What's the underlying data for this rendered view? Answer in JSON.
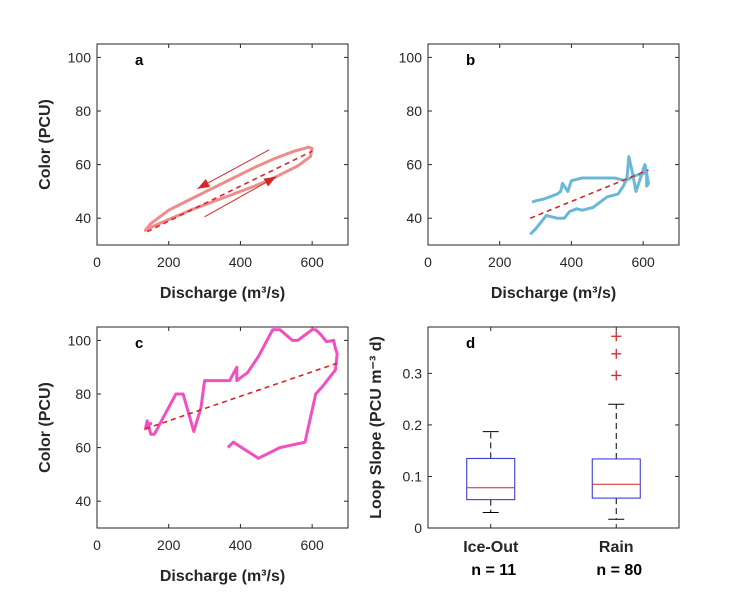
{
  "chart_data": [
    {
      "panel": "a",
      "type": "line",
      "xlabel": "Discharge (m³/s)",
      "ylabel": "Color (PCU)",
      "xlim": [
        0,
        700
      ],
      "ylim": [
        30,
        105
      ],
      "xticks": [
        0,
        200,
        400,
        600
      ],
      "yticks": [
        40,
        60,
        80,
        100
      ],
      "colors": {
        "loop": "#f08b8b",
        "fit": "#d62728",
        "arrow": "#d62728"
      },
      "series": [
        {
          "style": "loop",
          "x": [
            140,
            200,
            260,
            320,
            380,
            440,
            500,
            560,
            595,
            600,
            590,
            550,
            500,
            440,
            380,
            320,
            260,
            200,
            150,
            135,
            140
          ],
          "y": [
            36,
            39.5,
            43,
            46,
            49,
            52,
            55.5,
            59.5,
            63,
            66,
            66.5,
            65,
            62.5,
            59,
            55,
            51,
            47,
            43,
            38,
            35.5,
            36
          ]
        },
        {
          "style": "fit-dashed",
          "x": [
            140,
            600
          ],
          "y": [
            35,
            65
          ]
        },
        {
          "style": "arrow",
          "x": [
            480,
            280
          ],
          "y": [
            65.5,
            51
          ]
        },
        {
          "style": "arrow",
          "x": [
            300,
            500
          ],
          "y": [
            40.5,
            55.5
          ]
        }
      ]
    },
    {
      "panel": "b",
      "type": "line",
      "xlabel": "Discharge (m³/s)",
      "ylabel": "",
      "xlim": [
        0,
        700
      ],
      "ylim": [
        30,
        105
      ],
      "xticks": [
        0,
        200,
        400,
        600
      ],
      "yticks": [
        40,
        60,
        80,
        100
      ],
      "colors": {
        "loop": "#6ab8d9",
        "fit": "#d62728"
      },
      "series": [
        {
          "style": "loop",
          "x": [
            290,
            300,
            320,
            330,
            360,
            370,
            375,
            390,
            400,
            430,
            480,
            520,
            550,
            580,
            610,
            610,
            615,
            605,
            580,
            570,
            560,
            555,
            545,
            530,
            500,
            460,
            430,
            415,
            405,
            395,
            380,
            360,
            330,
            300,
            285
          ],
          "y": [
            46,
            46.5,
            47,
            47.5,
            49,
            50,
            53,
            50,
            54,
            55,
            55,
            55,
            54,
            56,
            57,
            52,
            53,
            60,
            50,
            57,
            63,
            55,
            52,
            49,
            48,
            44,
            43,
            43.5,
            43,
            42.5,
            40,
            40,
            41,
            36,
            34
          ]
        },
        {
          "style": "fit-dashed",
          "x": [
            285,
            615
          ],
          "y": [
            40,
            58
          ]
        }
      ]
    },
    {
      "panel": "c",
      "type": "line",
      "xlabel": "Discharge (m³/s)",
      "ylabel": "Color (PCU)",
      "xlim": [
        0,
        700
      ],
      "ylim": [
        30,
        105
      ],
      "xticks": [
        0,
        200,
        400,
        600
      ],
      "yticks": [
        40,
        60,
        80,
        100
      ],
      "colors": {
        "loop": "#f050c0",
        "fit": "#d62728"
      },
      "series": [
        {
          "style": "loop",
          "x": [
            365,
            380,
            450,
            510,
            580,
            610,
            630,
            665,
            670,
            665,
            660,
            640,
            625,
            610,
            600,
            560,
            545,
            510,
            490,
            450,
            420,
            390,
            390,
            370,
            360,
            350,
            300,
            290,
            270,
            240,
            220,
            200,
            180,
            160,
            150,
            140,
            135,
            150,
            140
          ],
          "y": [
            60,
            62,
            56,
            60,
            62,
            80,
            83,
            89,
            95,
            97,
            100,
            99.5,
            102,
            104,
            104,
            100,
            100,
            104,
            104,
            94,
            88,
            85,
            90,
            85,
            85,
            85,
            85,
            75,
            66,
            80,
            80,
            75,
            70,
            65,
            65,
            70,
            67,
            69,
            68
          ]
        },
        {
          "style": "fit-dashed",
          "x": [
            135,
            670
          ],
          "y": [
            67,
            91.5
          ]
        }
      ]
    },
    {
      "panel": "d",
      "type": "box",
      "ylabel": "Loop Slope (PCU m⁻³ d)",
      "categories": [
        "Ice-Out",
        "Rain"
      ],
      "counts": [
        "n = 11",
        "n = 80"
      ],
      "ylim": [
        0,
        0.39
      ],
      "yticks": [
        0,
        0.1,
        0.2,
        0.3
      ],
      "ytick_labels": [
        "0",
        "0.1",
        "0.2",
        "0.3"
      ],
      "colors": {
        "box": "#2b2bd6",
        "median": "#d62728",
        "outlier": "#d62728",
        "whisker": "#000000"
      },
      "boxes": [
        {
          "category": "Ice-Out",
          "whislo": 0.03,
          "q1": 0.055,
          "median": 0.078,
          "q3": 0.135,
          "whishi": 0.187,
          "outliers": []
        },
        {
          "category": "Rain",
          "whislo": 0.017,
          "q1": 0.058,
          "median": 0.085,
          "q3": 0.134,
          "whishi": 0.24,
          "outliers": [
            0.296,
            0.338,
            0.372
          ]
        }
      ]
    }
  ]
}
